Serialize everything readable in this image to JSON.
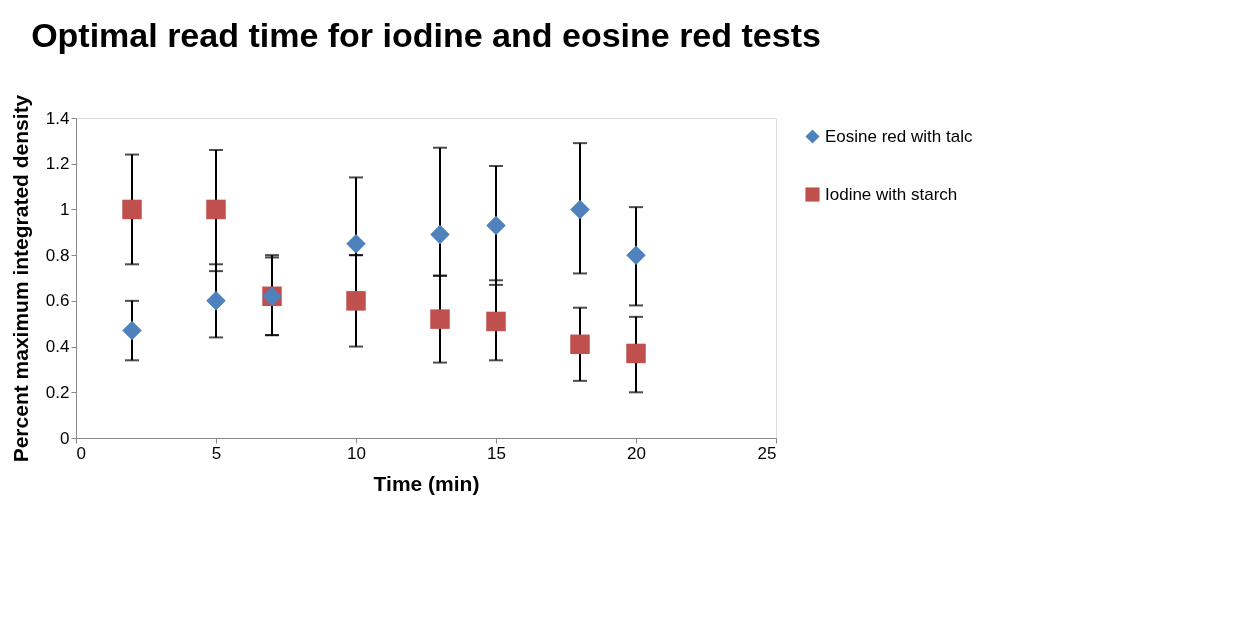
{
  "chart_data": {
    "type": "scatter",
    "title": "Optimal read time for iodine and eosine red tests",
    "xlabel": "Time (min)",
    "ylabel": "Percent maximum integrated density",
    "xlim": [
      0,
      25
    ],
    "xticks": [
      0,
      5,
      10,
      15,
      20,
      25
    ],
    "ylim": [
      0,
      1.4
    ],
    "yticks": [
      0,
      0.2,
      0.4,
      0.6,
      0.8,
      1,
      1.2,
      1.4
    ],
    "grid": false,
    "legend": "right",
    "series": [
      {
        "name": "Eosine red with talc",
        "color": "#4f81bd",
        "marker": "diamond",
        "x": [
          2,
          5,
          7,
          10,
          13,
          15,
          18,
          20
        ],
        "values": [
          0.47,
          0.6,
          0.62,
          0.85,
          0.89,
          0.93,
          1.0,
          0.8
        ],
        "errors": [
          [
            0.34,
            0.6
          ],
          [
            0.44,
            0.76
          ],
          [
            0.45,
            0.79
          ],
          [
            0.8,
            1.14
          ],
          [
            0.71,
            1.27
          ],
          [
            0.67,
            1.19
          ],
          [
            0.72,
            1.29
          ],
          [
            0.58,
            1.01
          ]
        ]
      },
      {
        "name": "Iodine with starch",
        "color": "#c0504d",
        "marker": "square",
        "x": [
          2,
          5,
          7,
          10,
          13,
          15,
          18,
          20
        ],
        "values": [
          1.0,
          1.0,
          0.62,
          0.6,
          0.52,
          0.51,
          0.41,
          0.37
        ],
        "errors": [
          [
            0.76,
            1.24
          ],
          [
            0.73,
            1.26
          ],
          [
            0.45,
            0.8
          ],
          [
            0.4,
            0.8
          ],
          [
            0.33,
            0.71
          ],
          [
            0.34,
            0.69
          ],
          [
            0.25,
            0.57
          ],
          [
            0.2,
            0.53
          ]
        ]
      }
    ]
  }
}
